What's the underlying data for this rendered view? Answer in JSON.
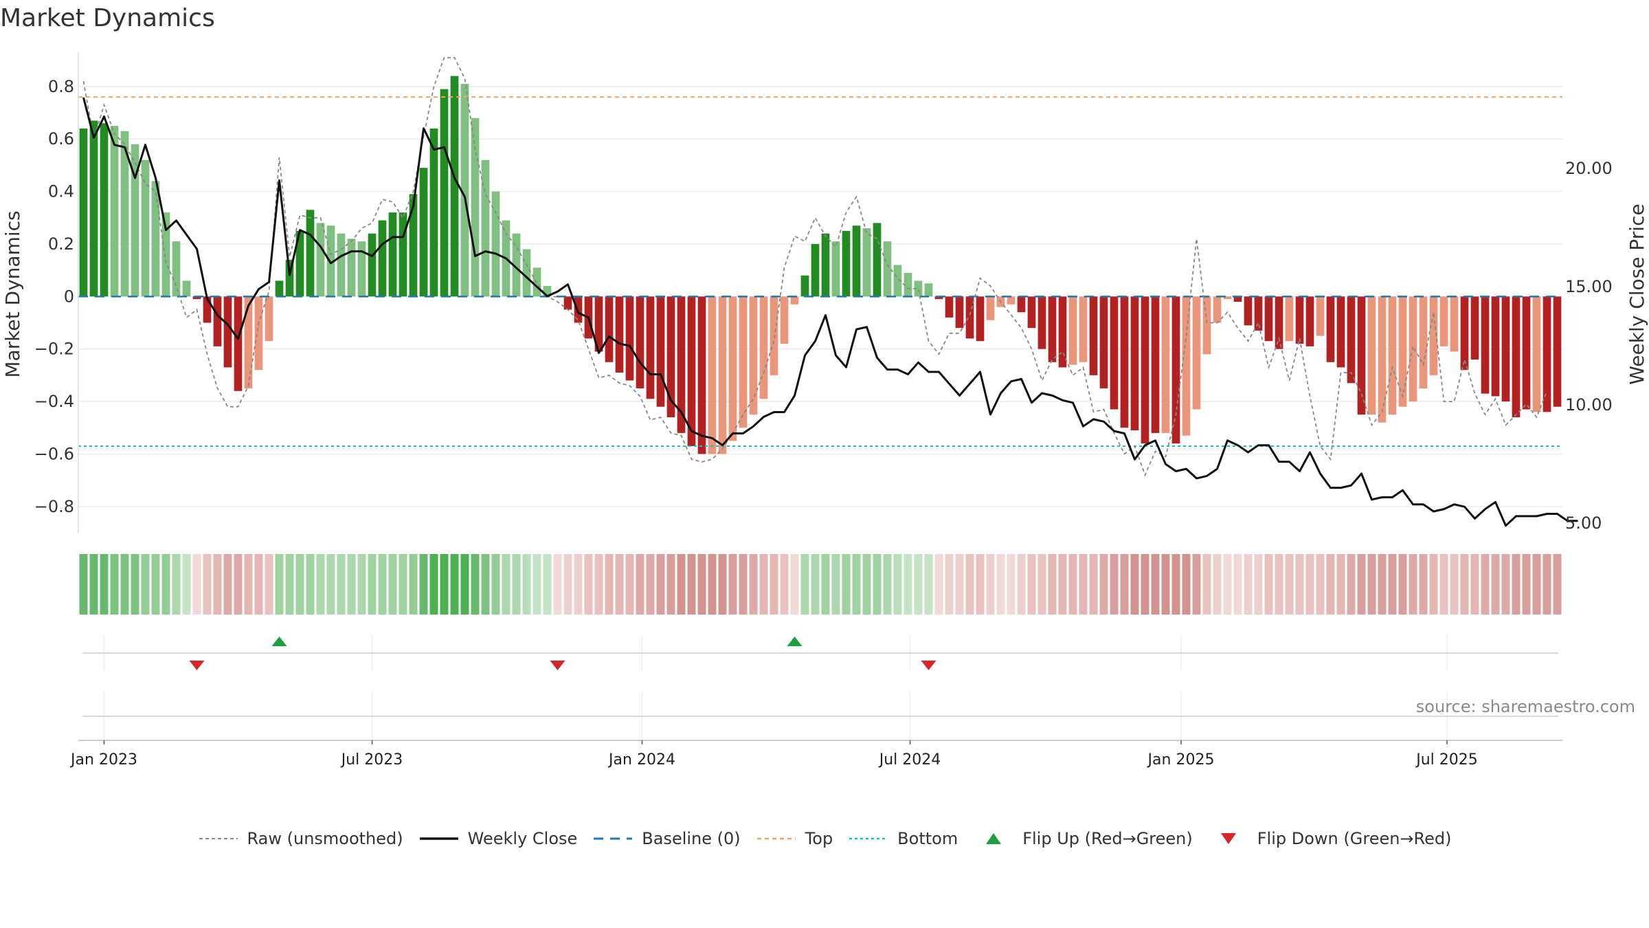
{
  "chart_data": {
    "type": "bar",
    "title": "Market Dynamics",
    "ylabel": "Market Dynamics",
    "y2label": "Weekly Close Price",
    "source": "source: sharemaestro.com",
    "ylim": [
      -0.9,
      0.92
    ],
    "y2lim": [
      4.6,
      24.8
    ],
    "yticks": [
      -0.8,
      -0.6,
      -0.4,
      -0.2,
      0,
      0.2,
      0.4,
      0.6,
      0.8
    ],
    "ytick_labels": [
      "−0.8",
      "−0.6",
      "−0.4",
      "−0.2",
      "0",
      "0.2",
      "0.4",
      "0.6",
      "0.8"
    ],
    "y2ticks": [
      5,
      10,
      15,
      20
    ],
    "y2tick_labels": [
      "5.00",
      "10.00",
      "15.00",
      "20.00"
    ],
    "xticks": [
      {
        "label": "Jan 2023",
        "week": 2.5
      },
      {
        "label": "Jul 2023",
        "week": 28.5
      },
      {
        "label": "Jan 2024",
        "week": 54.7
      },
      {
        "label": "Jul 2024",
        "week": 80.7
      },
      {
        "label": "Jan 2025",
        "week": 107
      },
      {
        "label": "Jul 2025",
        "week": 132.8
      }
    ],
    "top_level": 0.76,
    "bottom_level": -0.57,
    "baseline": 0,
    "bar_values": [
      0.64,
      0.67,
      0.66,
      0.65,
      0.63,
      0.58,
      0.52,
      0.44,
      0.32,
      0.21,
      0.06,
      -0.01,
      -0.1,
      -0.19,
      -0.27,
      -0.36,
      -0.35,
      -0.28,
      -0.17,
      0.06,
      0.14,
      0.25,
      0.33,
      0.28,
      0.27,
      0.24,
      0.22,
      0.21,
      0.24,
      0.29,
      0.32,
      0.32,
      0.39,
      0.49,
      0.64,
      0.79,
      0.84,
      0.81,
      0.68,
      0.52,
      0.4,
      0.29,
      0.24,
      0.18,
      0.11,
      0.04,
      0.0,
      -0.05,
      -0.1,
      -0.16,
      -0.21,
      -0.25,
      -0.29,
      -0.32,
      -0.35,
      -0.39,
      -0.42,
      -0.46,
      -0.52,
      -0.57,
      -0.6,
      -0.6,
      -0.6,
      -0.55,
      -0.5,
      -0.45,
      -0.39,
      -0.3,
      -0.18,
      -0.03,
      0.08,
      0.2,
      0.24,
      0.21,
      0.25,
      0.27,
      0.26,
      0.28,
      0.21,
      0.12,
      0.09,
      0.06,
      0.05,
      -0.01,
      -0.08,
      -0.12,
      -0.16,
      -0.17,
      -0.09,
      -0.04,
      -0.03,
      -0.06,
      -0.12,
      -0.2,
      -0.25,
      -0.27,
      -0.26,
      -0.25,
      -0.3,
      -0.35,
      -0.43,
      -0.5,
      -0.51,
      -0.56,
      -0.52,
      -0.52,
      -0.56,
      -0.53,
      -0.43,
      -0.22,
      -0.1,
      -0.01,
      -0.02,
      -0.11,
      -0.13,
      -0.17,
      -0.2,
      -0.17,
      -0.18,
      -0.19,
      -0.15,
      -0.25,
      -0.27,
      -0.33,
      -0.45,
      -0.45,
      -0.48,
      -0.45,
      -0.42,
      -0.4,
      -0.35,
      -0.3,
      -0.19,
      -0.21,
      -0.28,
      -0.24,
      -0.37,
      -0.38,
      -0.4,
      -0.46,
      -0.43,
      -0.44,
      -0.44,
      -0.42
    ],
    "bar_colors": [
      "#228b22",
      "#228b22",
      "#228b22",
      "#7fbf7f",
      "#7fbf7f",
      "#7fbf7f",
      "#7fbf7f",
      "#7fbf7f",
      "#7fbf7f",
      "#7fbf7f",
      "#7fbf7f",
      "#b22222",
      "#b22222",
      "#b22222",
      "#b22222",
      "#b22222",
      "#e9967a",
      "#e9967a",
      "#e9967a",
      "#228b22",
      "#228b22",
      "#228b22",
      "#228b22",
      "#7fbf7f",
      "#7fbf7f",
      "#7fbf7f",
      "#7fbf7f",
      "#7fbf7f",
      "#228b22",
      "#228b22",
      "#228b22",
      "#228b22",
      "#228b22",
      "#228b22",
      "#228b22",
      "#228b22",
      "#228b22",
      "#7fbf7f",
      "#7fbf7f",
      "#7fbf7f",
      "#7fbf7f",
      "#7fbf7f",
      "#7fbf7f",
      "#7fbf7f",
      "#7fbf7f",
      "#7fbf7f",
      "#b22222",
      "#b22222",
      "#b22222",
      "#b22222",
      "#b22222",
      "#b22222",
      "#b22222",
      "#b22222",
      "#b22222",
      "#b22222",
      "#b22222",
      "#b22222",
      "#b22222",
      "#b22222",
      "#b22222",
      "#e9967a",
      "#e9967a",
      "#e9967a",
      "#e9967a",
      "#e9967a",
      "#e9967a",
      "#e9967a",
      "#e9967a",
      "#e9967a",
      "#228b22",
      "#228b22",
      "#228b22",
      "#7fbf7f",
      "#228b22",
      "#228b22",
      "#7fbf7f",
      "#228b22",
      "#7fbf7f",
      "#7fbf7f",
      "#7fbf7f",
      "#7fbf7f",
      "#7fbf7f",
      "#b22222",
      "#b22222",
      "#b22222",
      "#b22222",
      "#b22222",
      "#e9967a",
      "#e9967a",
      "#e9967a",
      "#b22222",
      "#b22222",
      "#b22222",
      "#b22222",
      "#b22222",
      "#e9967a",
      "#e9967a",
      "#b22222",
      "#b22222",
      "#b22222",
      "#b22222",
      "#b22222",
      "#b22222",
      "#b22222",
      "#e9967a",
      "#b22222",
      "#e9967a",
      "#e9967a",
      "#e9967a",
      "#e9967a",
      "#e9967a",
      "#b22222",
      "#b22222",
      "#b22222",
      "#b22222",
      "#b22222",
      "#e9967a",
      "#b22222",
      "#b22222",
      "#e9967a",
      "#b22222",
      "#b22222",
      "#b22222",
      "#b22222",
      "#e9967a",
      "#e9967a",
      "#e9967a",
      "#e9967a",
      "#e9967a",
      "#e9967a",
      "#e9967a",
      "#e9967a",
      "#e9967a",
      "#b22222",
      "#b22222",
      "#b22222",
      "#b22222",
      "#b22222",
      "#b22222",
      "#b22222",
      "#e9967a",
      "#b22222",
      "#b22222",
      "#e9967a"
    ],
    "raw": [
      0.82,
      0.6,
      0.73,
      0.62,
      0.58,
      0.51,
      0.43,
      0.4,
      0.13,
      0.04,
      -0.08,
      -0.05,
      -0.22,
      -0.35,
      -0.42,
      -0.42,
      -0.34,
      -0.1,
      0.02,
      0.53,
      0.15,
      0.31,
      0.3,
      0.3,
      0.16,
      0.18,
      0.21,
      0.26,
      0.28,
      0.37,
      0.36,
      0.3,
      0.4,
      0.61,
      0.8,
      0.91,
      0.91,
      0.83,
      0.56,
      0.39,
      0.32,
      0.24,
      0.19,
      0.12,
      0.05,
      0.0,
      -0.02,
      -0.05,
      -0.09,
      -0.2,
      -0.31,
      -0.3,
      -0.33,
      -0.34,
      -0.38,
      -0.47,
      -0.46,
      -0.52,
      -0.53,
      -0.62,
      -0.63,
      -0.62,
      -0.58,
      -0.52,
      -0.45,
      -0.39,
      -0.29,
      -0.17,
      0.11,
      0.23,
      0.21,
      0.3,
      0.23,
      0.19,
      0.32,
      0.38,
      0.24,
      0.22,
      0.12,
      0.07,
      0.03,
      0.03,
      -0.17,
      -0.22,
      -0.14,
      -0.14,
      -0.07,
      0.07,
      0.04,
      -0.02,
      -0.07,
      -0.12,
      -0.2,
      -0.32,
      -0.24,
      -0.21,
      -0.3,
      -0.27,
      -0.44,
      -0.43,
      -0.52,
      -0.6,
      -0.57,
      -0.68,
      -0.59,
      -0.61,
      -0.45,
      -0.15,
      0.22,
      -0.1,
      -0.1,
      -0.06,
      -0.12,
      -0.17,
      -0.1,
      -0.27,
      -0.16,
      -0.32,
      -0.16,
      -0.38,
      -0.57,
      -0.62,
      -0.29,
      -0.29,
      -0.37,
      -0.49,
      -0.44,
      -0.27,
      -0.38,
      -0.19,
      -0.26,
      -0.06,
      -0.4,
      -0.4,
      -0.24,
      -0.37,
      -0.45,
      -0.39,
      -0.49,
      -0.45,
      -0.41,
      -0.46,
      -0.36
    ],
    "close": [
      23.0,
      21.3,
      22.2,
      21.0,
      20.9,
      19.6,
      21.0,
      19.6,
      17.4,
      17.8,
      17.2,
      16.6,
      14.5,
      13.8,
      13.4,
      12.8,
      14.2,
      14.9,
      15.2,
      19.5,
      15.5,
      17.4,
      17.2,
      16.7,
      16.0,
      16.3,
      16.5,
      16.5,
      16.3,
      16.8,
      17.1,
      17.1,
      18.4,
      21.7,
      20.8,
      20.9,
      19.6,
      18.8,
      16.3,
      16.5,
      16.4,
      16.2,
      15.8,
      15.4,
      15.0,
      14.6,
      14.8,
      15.1,
      13.9,
      13.7,
      12.2,
      12.9,
      12.6,
      12.5,
      11.8,
      11.3,
      11.3,
      10.2,
      9.7,
      8.9,
      8.7,
      8.6,
      8.3,
      8.8,
      8.8,
      9.1,
      9.5,
      9.7,
      9.7,
      10.4,
      12.1,
      12.7,
      13.8,
      12.1,
      11.6,
      13.2,
      13.3,
      12.0,
      11.5,
      11.5,
      11.3,
      11.8,
      11.4,
      11.4,
      10.9,
      10.4,
      10.9,
      11.4,
      9.6,
      10.5,
      11.0,
      11.1,
      10.1,
      10.5,
      10.4,
      10.2,
      10.1,
      9.1,
      9.4,
      9.3,
      8.9,
      8.8,
      7.7,
      8.3,
      8.5,
      7.5,
      7.2,
      7.3,
      6.9,
      7.0,
      7.3,
      8.5,
      8.3,
      8.0,
      8.3,
      8.3,
      7.6,
      7.6,
      7.2,
      8.0,
      7.1,
      6.5,
      6.5,
      6.6,
      7.1,
      6.0,
      6.1,
      6.1,
      6.4,
      5.8,
      5.8,
      5.5,
      5.6,
      5.8,
      5.7,
      5.2,
      5.6,
      5.9,
      4.9,
      5.3,
      5.3,
      5.3,
      5.4,
      5.4,
      5.1,
      5.1
    ],
    "strip_colors": [
      "#66b96a",
      "#66b96a",
      "#66b96a",
      "#7cc37f",
      "#7cc37f",
      "#7cc37f",
      "#93cd95",
      "#93cd95",
      "#93cd95",
      "#aad7ab",
      "#c5e3c5",
      "#f1d9d7",
      "#e9c2bf",
      "#e3b6b3",
      "#ddaaa7",
      "#ddaaa7",
      "#e3b6b3",
      "#e3b6b3",
      "#e9c2bf",
      "#9ed29f",
      "#9ed29f",
      "#9ed29f",
      "#9ed29f",
      "#aad7ab",
      "#aad7ab",
      "#aad7ab",
      "#aad7ab",
      "#aad7ab",
      "#9ed29f",
      "#9ed29f",
      "#9ed29f",
      "#9ed29f",
      "#93cd95",
      "#66b96a",
      "#4caf50",
      "#4caf50",
      "#4caf50",
      "#4caf50",
      "#66b96a",
      "#7cc37f",
      "#93cd95",
      "#aad7ab",
      "#aad7ab",
      "#b8ddb9",
      "#c5e3c5",
      "#c5e3c5",
      "#f1d9d7",
      "#ecd0cd",
      "#ecd0cd",
      "#e9c2bf",
      "#e9c2bf",
      "#e3b6b3",
      "#e3b6b3",
      "#e3b6b3",
      "#ddaaa7",
      "#ddaaa7",
      "#d89e9b",
      "#d89e9b",
      "#d3928e",
      "#d3928e",
      "#d3928e",
      "#d3928e",
      "#d3928e",
      "#d89e9b",
      "#d89e9b",
      "#ddaaa7",
      "#e3b6b3",
      "#e3b6b3",
      "#e9c2bf",
      "#f1d9d7",
      "#aad7ab",
      "#aad7ab",
      "#9ed29f",
      "#aad7ab",
      "#9ed29f",
      "#9ed29f",
      "#9ed29f",
      "#9ed29f",
      "#aad7ab",
      "#b8ddb9",
      "#c5e3c5",
      "#c5e3c5",
      "#c5e3c5",
      "#f1d9d7",
      "#ecd0cd",
      "#ecd0cd",
      "#e9c2bf",
      "#e9c2bf",
      "#ecd0cd",
      "#f1d9d7",
      "#f1d9d7",
      "#ecd0cd",
      "#e9c2bf",
      "#e9c2bf",
      "#e3b6b3",
      "#e3b6b3",
      "#e3b6b3",
      "#e3b6b3",
      "#e3b6b3",
      "#ddaaa7",
      "#d89e9b",
      "#d89e9b",
      "#d3928e",
      "#d3928e",
      "#d3928e",
      "#d3928e",
      "#d3928e",
      "#d3928e",
      "#d89e9b",
      "#e9c2bf",
      "#ecd0cd",
      "#f1d9d7",
      "#f1d9d7",
      "#ecd0cd",
      "#ecd0cd",
      "#e9c2bf",
      "#e9c2bf",
      "#e9c2bf",
      "#e9c2bf",
      "#e9c2bf",
      "#e9c2bf",
      "#e3b6b3",
      "#e3b6b3",
      "#ddaaa7",
      "#d89e9b",
      "#d89e9b",
      "#d89e9b",
      "#d89e9b",
      "#d89e9b",
      "#ddaaa7",
      "#ddaaa7",
      "#e3b6b3",
      "#e9c2bf",
      "#e9c2bf",
      "#e3b6b3",
      "#e3b6b3",
      "#ddaaa7",
      "#ddaaa7",
      "#ddaaa7",
      "#d89e9b",
      "#d89e9b",
      "#d89e9b",
      "#d89e9b",
      "#d89e9b"
    ],
    "flip_up_weeks": [
      19,
      69
    ],
    "flip_down_weeks": [
      11,
      46,
      82
    ],
    "legend": [
      {
        "label": "Raw (unsmoothed)",
        "style": "raw"
      },
      {
        "label": "Weekly Close",
        "style": "close"
      },
      {
        "label": "Baseline (0)",
        "style": "baseline"
      },
      {
        "label": "Top",
        "style": "top"
      },
      {
        "label": "Bottom",
        "style": "bottom"
      },
      {
        "label": "Flip Up (Red→Green)",
        "style": "flipup"
      },
      {
        "label": "Flip Down (Green→Red)",
        "style": "flipdown"
      }
    ],
    "colors": {
      "strong_green": "#228b22",
      "light_green": "#7fbf7f",
      "strong_red": "#b22222",
      "light_red": "#e9967a",
      "close_line": "#111111",
      "raw_line": "#888888",
      "baseline": "#1f77b4",
      "top": "#f4a261",
      "bottom": "#17becf",
      "flip_up": "#1e9e3e",
      "flip_down": "#d62728"
    }
  }
}
